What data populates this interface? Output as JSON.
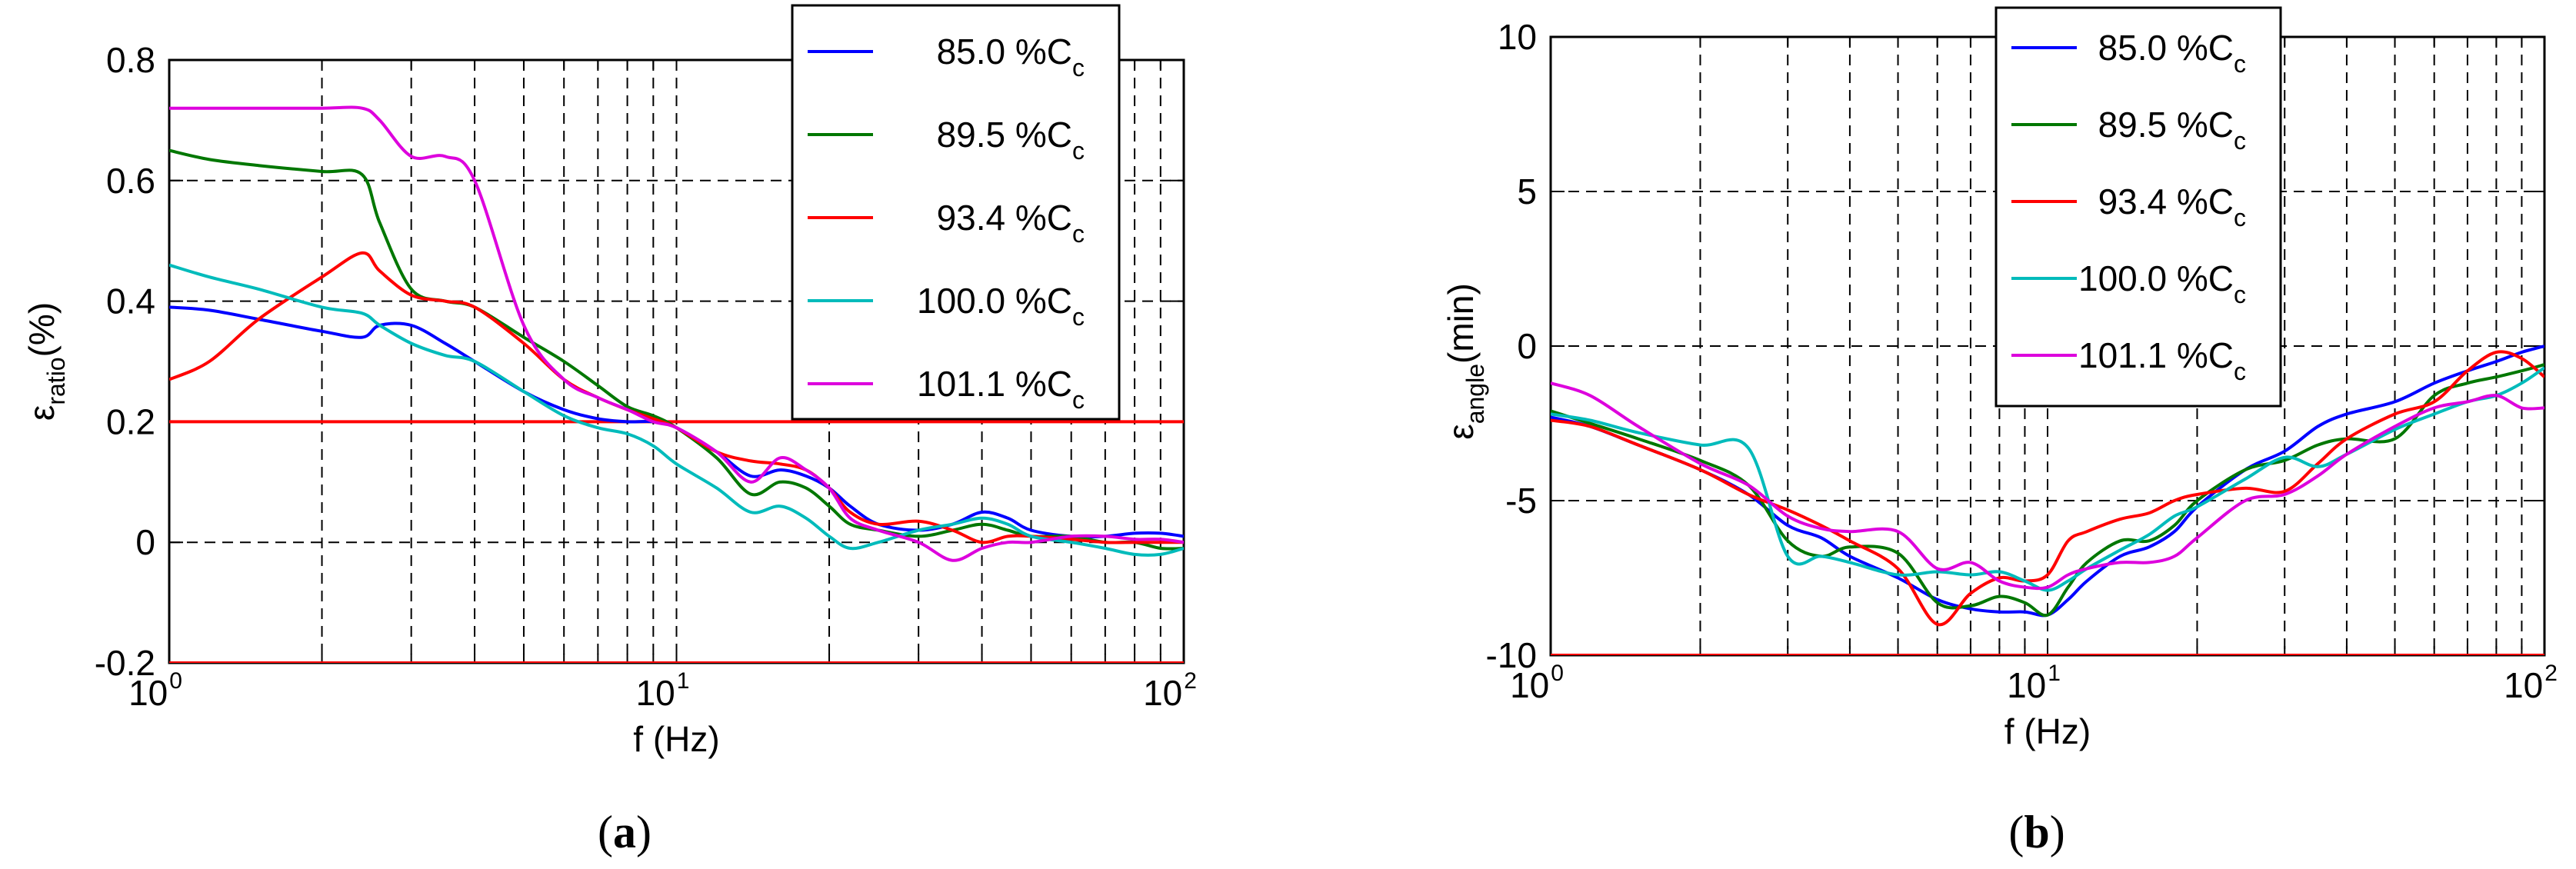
{
  "chart_data": [
    {
      "type": "line",
      "panel_label": "a",
      "xscale": "log",
      "xlim": [
        1,
        100
      ],
      "ylim": [
        -0.2,
        0.8
      ],
      "xticks": [
        {
          "base": "10",
          "exp": "0",
          "value": 1
        },
        {
          "base": "10",
          "exp": "1",
          "value": 10
        },
        {
          "base": "10",
          "exp": "2",
          "value": 100
        }
      ],
      "yticks": [
        {
          "label": "-0.2",
          "value": -0.2
        },
        {
          "label": "0",
          "value": 0
        },
        {
          "label": "0.2",
          "value": 0.2
        },
        {
          "label": "0.4",
          "value": 0.4
        },
        {
          "label": "0.6",
          "value": 0.6
        },
        {
          "label": "0.8",
          "value": 0.8
        }
      ],
      "xlabel": "f (Hz)",
      "ylabel": {
        "symbol": "ε",
        "subscript": "ratio",
        "unit": "(%)"
      },
      "grid": true,
      "legend_position": "top-right",
      "limit_lines": [
        {
          "value": 0.2,
          "color": "#ff0000"
        },
        {
          "value": -0.2,
          "color": "#ff0000"
        }
      ],
      "series": [
        {
          "name": "85.0 %C",
          "name_sub": "c",
          "color": "#0000ff",
          "x": [
            1,
            1.2,
            1.5,
            2,
            2.4,
            2.6,
            3,
            3.5,
            4,
            5,
            6,
            7,
            8,
            9,
            10,
            12,
            14,
            16,
            18,
            20,
            22,
            25,
            30,
            35,
            40,
            45,
            50,
            60,
            70,
            80,
            90,
            100
          ],
          "y": [
            0.39,
            0.385,
            0.37,
            0.35,
            0.34,
            0.36,
            0.36,
            0.33,
            0.3,
            0.25,
            0.22,
            0.205,
            0.2,
            0.2,
            0.19,
            0.15,
            0.11,
            0.12,
            0.11,
            0.09,
            0.06,
            0.03,
            0.02,
            0.03,
            0.05,
            0.04,
            0.02,
            0.01,
            0.01,
            0.015,
            0.015,
            0.01
          ]
        },
        {
          "name": "89.5 %C",
          "name_sub": "c",
          "color": "#007700",
          "x": [
            1,
            1.2,
            1.5,
            2,
            2.4,
            2.6,
            3,
            3.5,
            4,
            5,
            6,
            7,
            8,
            9,
            10,
            12,
            14,
            16,
            18,
            20,
            22,
            25,
            30,
            35,
            40,
            45,
            50,
            60,
            70,
            80,
            90,
            100
          ],
          "y": [
            0.65,
            0.635,
            0.625,
            0.615,
            0.61,
            0.53,
            0.42,
            0.4,
            0.39,
            0.34,
            0.3,
            0.26,
            0.225,
            0.21,
            0.19,
            0.14,
            0.08,
            0.1,
            0.09,
            0.06,
            0.03,
            0.02,
            0.01,
            0.02,
            0.03,
            0.02,
            0.01,
            0.01,
            0.0,
            0.0,
            -0.01,
            -0.01
          ]
        },
        {
          "name": "93.4 %C",
          "name_sub": "c",
          "color": "#ff0000",
          "x": [
            1,
            1.2,
            1.5,
            2,
            2.4,
            2.6,
            3,
            3.5,
            4,
            5,
            6,
            7,
            8,
            9,
            10,
            12,
            14,
            16,
            18,
            20,
            22,
            25,
            30,
            35,
            40,
            45,
            50,
            60,
            70,
            80,
            90,
            100
          ],
          "y": [
            0.27,
            0.3,
            0.37,
            0.44,
            0.48,
            0.45,
            0.41,
            0.4,
            0.39,
            0.33,
            0.27,
            0.24,
            0.22,
            0.205,
            0.19,
            0.15,
            0.135,
            0.13,
            0.12,
            0.09,
            0.05,
            0.03,
            0.035,
            0.02,
            0.0,
            0.01,
            0.01,
            0.005,
            0.0,
            0.0,
            0.0,
            0.0
          ]
        },
        {
          "name": "100.0 %C",
          "name_sub": "c",
          "color": "#00bbbb",
          "x": [
            1,
            1.2,
            1.5,
            2,
            2.4,
            2.6,
            3,
            3.5,
            4,
            5,
            6,
            7,
            8,
            9,
            10,
            12,
            14,
            16,
            18,
            20,
            22,
            25,
            30,
            35,
            40,
            45,
            50,
            60,
            70,
            80,
            90,
            100
          ],
          "y": [
            0.46,
            0.44,
            0.42,
            0.39,
            0.38,
            0.36,
            0.33,
            0.31,
            0.3,
            0.25,
            0.21,
            0.19,
            0.18,
            0.16,
            0.13,
            0.09,
            0.05,
            0.06,
            0.04,
            0.01,
            -0.01,
            0.0,
            0.02,
            0.03,
            0.04,
            0.03,
            0.01,
            0.0,
            -0.01,
            -0.02,
            -0.02,
            -0.01
          ]
        },
        {
          "name": "101.1 %C",
          "name_sub": "c",
          "color": "#dd00dd",
          "x": [
            1,
            1.2,
            1.5,
            2,
            2.4,
            2.6,
            3,
            3.5,
            4,
            5,
            6,
            7,
            8,
            9,
            10,
            12,
            14,
            16,
            18,
            20,
            22,
            25,
            30,
            35,
            40,
            45,
            50,
            60,
            70,
            80,
            90,
            100
          ],
          "y": [
            0.72,
            0.72,
            0.72,
            0.72,
            0.72,
            0.7,
            0.64,
            0.64,
            0.6,
            0.36,
            0.27,
            0.24,
            0.22,
            0.2,
            0.19,
            0.15,
            0.1,
            0.14,
            0.12,
            0.09,
            0.04,
            0.02,
            0.0,
            -0.03,
            -0.01,
            0.0,
            0.0,
            0.01,
            0.01,
            0.005,
            0.005,
            0.0
          ]
        }
      ]
    },
    {
      "type": "line",
      "panel_label": "b",
      "xscale": "log",
      "xlim": [
        1,
        100
      ],
      "ylim": [
        -10,
        10
      ],
      "xticks": [
        {
          "base": "10",
          "exp": "0",
          "value": 1
        },
        {
          "base": "10",
          "exp": "1",
          "value": 10
        },
        {
          "base": "10",
          "exp": "2",
          "value": 100
        }
      ],
      "yticks": [
        {
          "label": "-10",
          "value": -10
        },
        {
          "label": "-5",
          "value": -5
        },
        {
          "label": "0",
          "value": 0
        },
        {
          "label": "5",
          "value": 5
        },
        {
          "label": "10",
          "value": 10
        }
      ],
      "xlabel": "f (Hz)",
      "ylabel": {
        "symbol": "ε",
        "subscript": "angle",
        "unit": "(min)"
      },
      "grid": true,
      "legend_position": "top-center",
      "limit_lines": [
        {
          "value": -10,
          "color": "#ff0000"
        }
      ],
      "series": [
        {
          "name": "85.0 %C",
          "name_sub": "c",
          "color": "#0000ff",
          "x": [
            1,
            1.2,
            1.5,
            2,
            2.5,
            3,
            3.5,
            4,
            5,
            6,
            7,
            8,
            9,
            10,
            11,
            12,
            14,
            16,
            18,
            20,
            25,
            30,
            35,
            40,
            50,
            60,
            70,
            80,
            90,
            100
          ],
          "y": [
            -2.3,
            -2.6,
            -3.2,
            -4.0,
            -4.8,
            -5.8,
            -6.2,
            -6.8,
            -7.5,
            -8.2,
            -8.5,
            -8.6,
            -8.6,
            -8.7,
            -8.2,
            -7.6,
            -6.8,
            -6.5,
            -6.0,
            -5.2,
            -4.0,
            -3.4,
            -2.6,
            -2.2,
            -1.8,
            -1.2,
            -0.8,
            -0.5,
            -0.2,
            0.0
          ]
        },
        {
          "name": "89.5 %C",
          "name_sub": "c",
          "color": "#007700",
          "x": [
            1,
            1.2,
            1.5,
            2,
            2.5,
            3,
            3.5,
            4,
            5,
            6,
            7,
            8,
            9,
            10,
            11,
            12,
            14,
            16,
            18,
            20,
            25,
            30,
            35,
            40,
            50,
            60,
            70,
            80,
            90,
            100
          ],
          "y": [
            -2.1,
            -2.5,
            -3.0,
            -3.7,
            -4.5,
            -6.3,
            -6.8,
            -6.5,
            -6.7,
            -8.3,
            -8.4,
            -8.1,
            -8.3,
            -8.7,
            -7.8,
            -7.0,
            -6.3,
            -6.3,
            -5.8,
            -5.0,
            -4.0,
            -3.7,
            -3.2,
            -3.0,
            -3.0,
            -1.6,
            -1.2,
            -1.0,
            -0.8,
            -0.6
          ]
        },
        {
          "name": "93.4 %C",
          "name_sub": "c",
          "color": "#ff0000",
          "x": [
            1,
            1.2,
            1.5,
            2,
            2.5,
            3,
            3.5,
            4,
            5,
            6,
            7,
            8,
            9,
            10,
            11,
            12,
            14,
            16,
            18,
            20,
            25,
            30,
            35,
            40,
            50,
            60,
            70,
            80,
            90,
            100
          ],
          "y": [
            -2.4,
            -2.6,
            -3.2,
            -4.0,
            -4.8,
            -5.3,
            -5.8,
            -6.3,
            -7.2,
            -9.0,
            -8.0,
            -7.5,
            -7.6,
            -7.4,
            -6.3,
            -6.0,
            -5.6,
            -5.4,
            -5.0,
            -4.8,
            -4.6,
            -4.7,
            -3.8,
            -3.0,
            -2.2,
            -1.8,
            -0.8,
            -0.2,
            -0.4,
            -1.0
          ]
        },
        {
          "name": "100.0 %C",
          "name_sub": "c",
          "color": "#00bbbb",
          "x": [
            1,
            1.2,
            1.5,
            2,
            2.5,
            3,
            3.5,
            4,
            5,
            6,
            7,
            8,
            9,
            10,
            11,
            12,
            14,
            16,
            18,
            20,
            25,
            30,
            35,
            40,
            50,
            60,
            70,
            80,
            90,
            100
          ],
          "y": [
            -2.2,
            -2.4,
            -2.8,
            -3.2,
            -3.3,
            -6.8,
            -6.8,
            -7.0,
            -7.4,
            -7.3,
            -7.4,
            -7.3,
            -7.6,
            -7.9,
            -7.6,
            -7.2,
            -6.6,
            -6.1,
            -5.5,
            -5.2,
            -4.3,
            -3.6,
            -3.9,
            -3.5,
            -2.7,
            -2.2,
            -1.8,
            -1.6,
            -1.2,
            -0.7
          ]
        },
        {
          "name": "101.1 %C",
          "name_sub": "c",
          "color": "#dd00dd",
          "x": [
            1,
            1.2,
            1.5,
            2,
            2.5,
            3,
            3.5,
            4,
            5,
            6,
            7,
            8,
            9,
            10,
            11,
            12,
            14,
            16,
            18,
            20,
            25,
            30,
            35,
            40,
            50,
            60,
            70,
            80,
            90,
            100
          ],
          "y": [
            -1.2,
            -1.6,
            -2.6,
            -3.8,
            -4.5,
            -5.5,
            -5.9,
            -6.0,
            -6.0,
            -7.2,
            -7.0,
            -7.6,
            -7.8,
            -7.8,
            -7.4,
            -7.2,
            -7.0,
            -7.0,
            -6.8,
            -6.2,
            -5.0,
            -4.8,
            -4.2,
            -3.5,
            -2.6,
            -2.0,
            -1.8,
            -1.6,
            -2.0,
            -2.0
          ]
        }
      ]
    }
  ],
  "captions": {
    "a": {
      "open": "(",
      "letter": "a",
      "close": ")"
    },
    "b": {
      "open": "(",
      "letter": "b",
      "close": ")"
    }
  }
}
